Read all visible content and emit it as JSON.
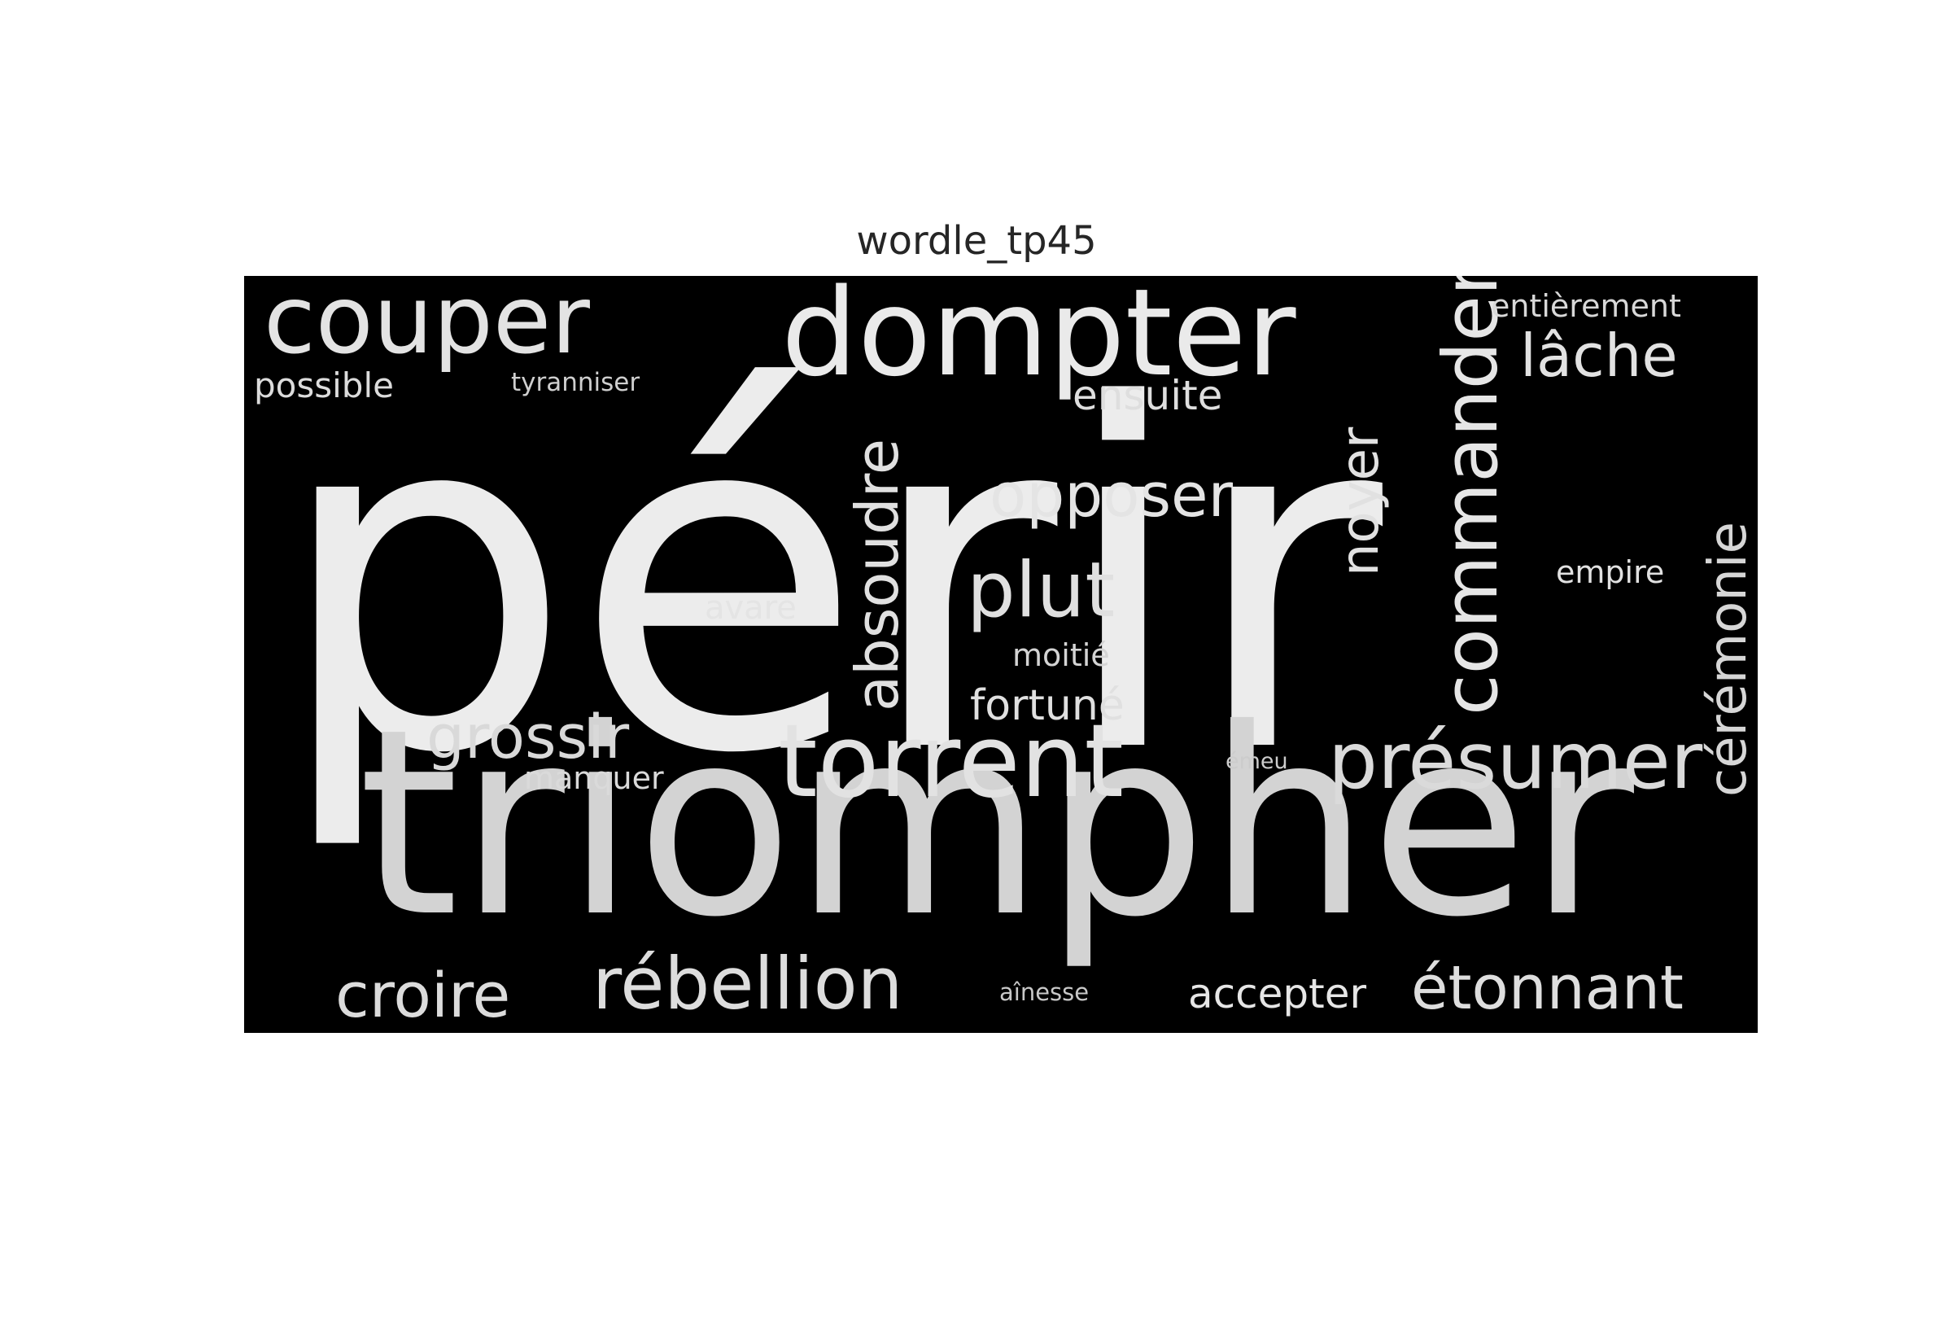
{
  "title": "wordle_tp45",
  "cloud": {
    "background": "#000000",
    "words": [
      {
        "text": "périr",
        "color": "#ececec"
      },
      {
        "text": "triompher",
        "color": "#d3d3d3"
      },
      {
        "text": "dompter",
        "color": "#eaeaea"
      },
      {
        "text": "couper",
        "color": "#e3e3e3"
      },
      {
        "text": "commander",
        "color": "#e6e6e6"
      },
      {
        "text": "torrent",
        "color": "#e2e2e2"
      },
      {
        "text": "rébellion",
        "color": "#dddddd"
      },
      {
        "text": "présumer",
        "color": "#dadada"
      },
      {
        "text": "étonnant",
        "color": "#dedede"
      },
      {
        "text": "absoudre",
        "color": "#e0e0e0"
      },
      {
        "text": "plut",
        "color": "#e0e0e0"
      },
      {
        "text": "croire",
        "color": "#dcdcdc"
      },
      {
        "text": "cérémonie",
        "color": "#d6d6d6"
      },
      {
        "text": "opposer",
        "color": "#e4e4e4"
      },
      {
        "text": "grossir",
        "color": "#d9d9d9"
      },
      {
        "text": "noyer",
        "color": "#e1e1e1"
      },
      {
        "text": "lâche",
        "color": "#e2e2e2"
      },
      {
        "text": "accepter",
        "color": "#e6e6e6"
      },
      {
        "text": "fortuné",
        "color": "#e0e0e0"
      },
      {
        "text": "ensuite",
        "color": "#dedede"
      },
      {
        "text": "entièrement",
        "color": "#d8d8d8"
      },
      {
        "text": "possible",
        "color": "#dcdcdc"
      },
      {
        "text": "manquer",
        "color": "#dadada"
      },
      {
        "text": "avare",
        "color": "#e4e4e4"
      },
      {
        "text": "moitié",
        "color": "#d4d4d4"
      },
      {
        "text": "empire",
        "color": "#e1e1e1"
      },
      {
        "text": "tyranniser",
        "color": "#cfcfcf"
      },
      {
        "text": "aînesse",
        "color": "#c8c8c8"
      },
      {
        "text": "émeu",
        "color": "#cccccc"
      }
    ]
  }
}
